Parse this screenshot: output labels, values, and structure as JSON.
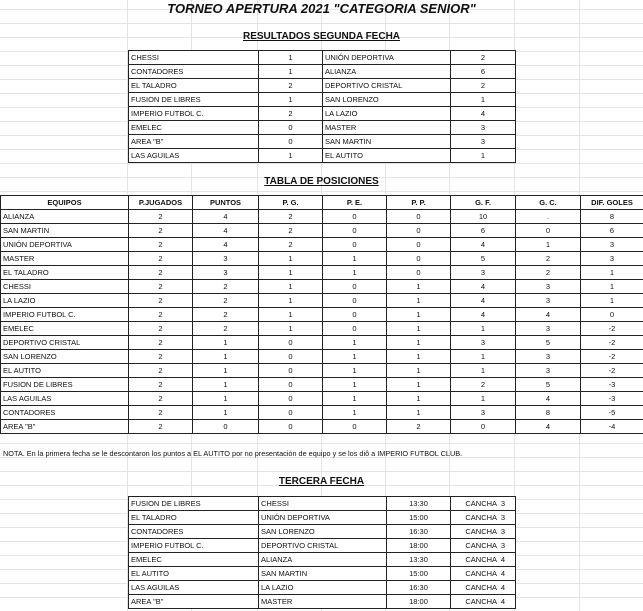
{
  "title": "TORNEO APERTURA 2021 \"CATEGORIA SENIOR\"",
  "resultados": {
    "heading": "RESULTADOS SEGUNDA FECHA",
    "rows": [
      [
        "CHESSI",
        "1",
        "UNIÓN DEPORTIVA",
        "2"
      ],
      [
        "CONTADORES",
        "1",
        "ALIANZA",
        "6"
      ],
      [
        "EL TALADRO",
        "2",
        "DEPORTIVO CRISTAL",
        "2"
      ],
      [
        "FUSION DE LIBRES",
        "1",
        "SAN LORENZO",
        "1"
      ],
      [
        "IMPERIO FUTBOL C.",
        "2",
        "LA LAZIO",
        "4"
      ],
      [
        "EMELEC",
        "0",
        "MASTER",
        "3"
      ],
      [
        "AREA \"B\"",
        "0",
        "SAN MARTIN",
        "3"
      ],
      [
        "LAS AGUILAS",
        "1",
        "EL AUTITO",
        "1"
      ]
    ]
  },
  "posiciones": {
    "heading": "TABLA DE POSICIONES",
    "columns": [
      "EQUIPOS",
      "P.JUGADOS",
      "PUNTOS",
      "P. G.",
      "P. E.",
      "P. P.",
      "G. F.",
      "G. C.",
      "DIF. GOLES"
    ],
    "rows": [
      [
        "ALIANZA",
        "2",
        "4",
        "2",
        "0",
        "0",
        "10",
        ".",
        "8"
      ],
      [
        "SAN MARTIN",
        "2",
        "4",
        "2",
        "0",
        "0",
        "6",
        "0",
        "6"
      ],
      [
        "UNIÓN DEPORTIVA",
        "2",
        "4",
        "2",
        "0",
        "0",
        "4",
        "1",
        "3"
      ],
      [
        "MASTER",
        "2",
        "3",
        "1",
        "1",
        "0",
        "5",
        "2",
        "3"
      ],
      [
        "EL TALADRO",
        "2",
        "3",
        "1",
        "1",
        "0",
        "3",
        "2",
        "1"
      ],
      [
        "CHESSI",
        "2",
        "2",
        "1",
        "0",
        "1",
        "4",
        "3",
        "1"
      ],
      [
        "LA LAZIO",
        "2",
        "2",
        "1",
        "0",
        "1",
        "4",
        "3",
        "1"
      ],
      [
        "IMPERIO FUTBOL C.",
        "2",
        "2",
        "1",
        "0",
        "1",
        "4",
        "4",
        "0"
      ],
      [
        "EMELEC",
        "2",
        "2",
        "1",
        "0",
        "1",
        "1",
        "3",
        "-2"
      ],
      [
        "DEPORTIVO CRISTAL",
        "2",
        "1",
        "0",
        "1",
        "1",
        "3",
        "5",
        "-2"
      ],
      [
        "SAN LORENZO",
        "2",
        "1",
        "0",
        "1",
        "1",
        "1",
        "3",
        "-2"
      ],
      [
        "EL AUTITO",
        "2",
        "1",
        "0",
        "1",
        "1",
        "1",
        "3",
        "-2"
      ],
      [
        "FUSION DE LIBRES",
        "2",
        "1",
        "0",
        "1",
        "1",
        "2",
        "5",
        "-3"
      ],
      [
        "LAS AGUILAS",
        "2",
        "1",
        "0",
        "1",
        "1",
        "1",
        "4",
        "-3"
      ],
      [
        "CONTADORES",
        "2",
        "1",
        "0",
        "1",
        "1",
        "3",
        "8",
        "-5"
      ],
      [
        "AREA \"B\"",
        "2",
        "0",
        "0",
        "0",
        "2",
        "0",
        "4",
        "-4"
      ]
    ]
  },
  "note": "NOTA. En la primera fecha se le descontaron los puntos a EL AUTITO por no presentación de equipo y se los diô a IMPERIO FUTBOL CLUB.",
  "tercera": {
    "heading": "TERCERA FECHA",
    "rows": [
      [
        "FUSION DE LIBRES",
        "CHESSI",
        "13:30",
        "CANCHA  3"
      ],
      [
        "EL TALADRO",
        "UNIÓN DEPORTIVA",
        "15:00",
        "CANCHA  3"
      ],
      [
        "CONTADORES",
        "SAN LORENZO",
        "16:30",
        "CANCHA  3"
      ],
      [
        "IMPERIO FUTBOL C.",
        "DEPORTIVO CRISTAL",
        "18:00",
        "CANCHA  3"
      ],
      [
        "EMELEC",
        "ALIANZA",
        "13:30",
        "CANCHA  4"
      ],
      [
        "EL AUTITO",
        "SAN MARTIN",
        "15:00",
        "CANCHA  4"
      ],
      [
        "LAS AGUILAS",
        "LA LAZIO",
        "16:30",
        "CANCHA  4"
      ],
      [
        "AREA \"B\"",
        "MASTER",
        "18:00",
        "CANCHA  4"
      ]
    ]
  }
}
